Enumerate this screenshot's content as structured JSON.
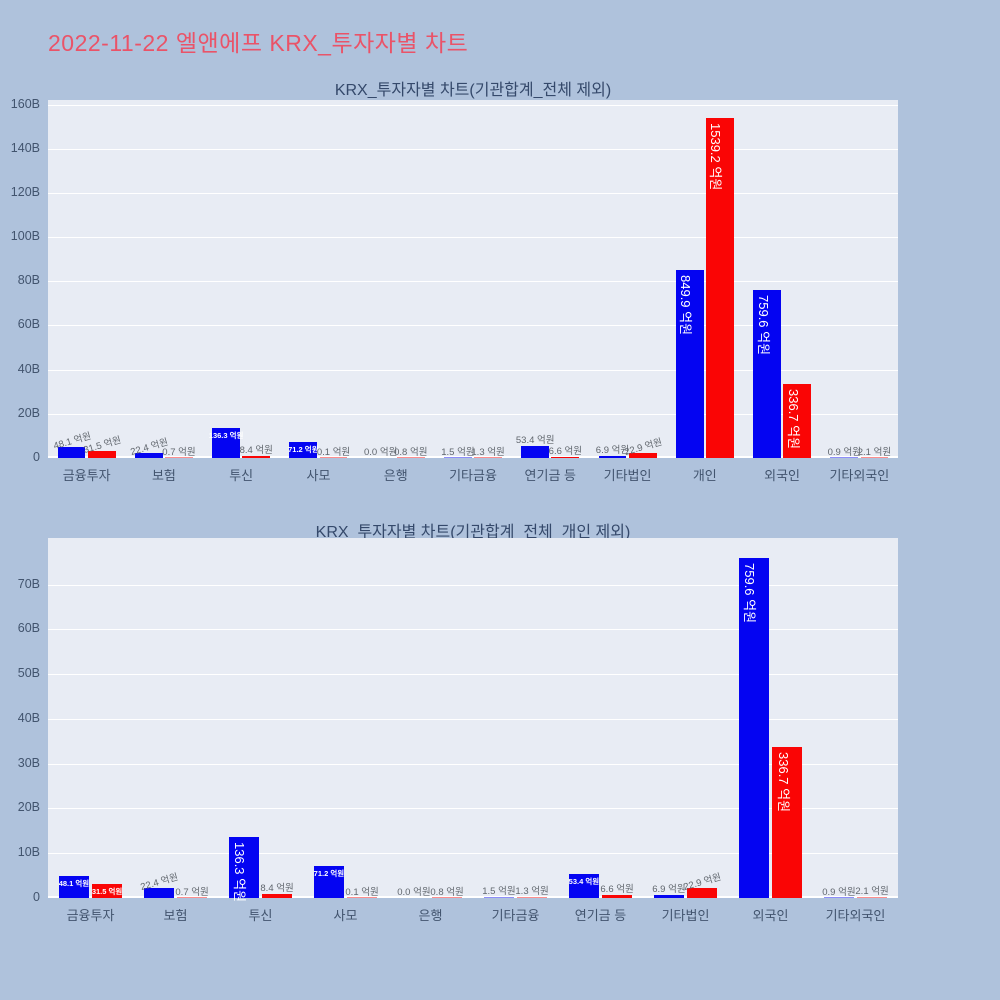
{
  "page": {
    "title": "2022-11-22 엘앤에프 KRX_투자자별 차트"
  },
  "colors": {
    "page_bg": "#afc2dc",
    "plot_bg": "#e8ecf4",
    "grid": "#ffffff",
    "bar_blue": "#0404f2",
    "bar_red": "#fa0505",
    "page_title": "#ea5368",
    "chart_title": "#35496b",
    "axis_label": "#42546e",
    "outside_label": "#60666d",
    "inside_label": "#ffffff"
  },
  "unit_suffix": "억원",
  "chart_data": [
    {
      "type": "bar",
      "title": "KRX_투자자별 차트(기관합계_전체 제외)",
      "categories": [
        "금융투자",
        "보험",
        "투신",
        "사모",
        "은행",
        "기타금융",
        "연기금 등",
        "기타법인",
        "개인",
        "외국인",
        "기타외국인"
      ],
      "series": [
        {
          "name": "series-blue",
          "color": "#0404f2",
          "values_eokwon": [
            48.1,
            22.4,
            136.3,
            71.2,
            0.0,
            1.5,
            53.4,
            6.9,
            849.9,
            759.6,
            0.9
          ]
        },
        {
          "name": "series-red",
          "color": "#fa0505",
          "values_eokwon": [
            31.5,
            0.7,
            8.4,
            0.1,
            0.8,
            1.3,
            6.6,
            22.9,
            1539.2,
            336.7,
            2.1
          ]
        }
      ],
      "value_labels": [
        [
          "48.1 억원",
          "22.4 억원",
          "136.3 억원",
          "71.2 억원",
          "0.0 억원",
          "1.5 억원",
          "53.4 억원",
          "6.9 억원",
          "849.9 억원",
          "759.6 억원",
          "0.9 억원"
        ],
        [
          "31.5 억원",
          "0.7 억원",
          "8.4 억원",
          "0.1 억원",
          "0.8 억원",
          "1.3 억원",
          "6.6 억원",
          "22.9 억원",
          "1539.2 억원",
          "336.7 억원",
          "2.1 억원"
        ]
      ],
      "ylim_B": [
        0,
        162.1
      ],
      "yticks": [
        {
          "v": 0,
          "label": "0"
        },
        {
          "v": 20,
          "label": "20B"
        },
        {
          "v": 40,
          "label": "40B"
        },
        {
          "v": 60,
          "label": "60B"
        },
        {
          "v": 80,
          "label": "80B"
        },
        {
          "v": 100,
          "label": "100B"
        },
        {
          "v": 120,
          "label": "120B"
        },
        {
          "v": 140,
          "label": "140B"
        },
        {
          "v": 160,
          "label": "160B"
        }
      ],
      "grid": true,
      "legend": "none",
      "tilted_value_labels": [
        [
          0,
          0
        ],
        [
          0,
          1
        ],
        [
          1,
          0
        ],
        [
          7,
          1
        ]
      ]
    },
    {
      "type": "bar",
      "title": "KRX_투자자별 차트(기관합계_전체_개인 제외)",
      "categories": [
        "금융투자",
        "보험",
        "투신",
        "사모",
        "은행",
        "기타금융",
        "연기금 등",
        "기타법인",
        "외국인",
        "기타외국인"
      ],
      "series": [
        {
          "name": "series-blue",
          "color": "#0404f2",
          "values_eokwon": [
            48.1,
            22.4,
            136.3,
            71.2,
            0.0,
            1.5,
            53.4,
            6.9,
            759.6,
            0.9
          ]
        },
        {
          "name": "series-red",
          "color": "#fa0505",
          "values_eokwon": [
            31.5,
            0.7,
            8.4,
            0.1,
            0.8,
            1.3,
            6.6,
            22.9,
            336.7,
            2.1
          ]
        }
      ],
      "value_labels": [
        [
          "48.1 억원",
          "22.4 억원",
          "136.3 억원",
          "71.2 억원",
          "0.0 억원",
          "1.5 억원",
          "53.4 억원",
          "6.9 억원",
          "759.6 억원",
          "0.9 억원"
        ],
        [
          "31.5 억원",
          "0.7 억원",
          "8.4 억원",
          "0.1 억원",
          "0.8 억원",
          "1.3 억원",
          "6.6 억원",
          "22.9 억원",
          "336.7 억원",
          "2.1 억원"
        ]
      ],
      "ylim_B": [
        0,
        80.4
      ],
      "yticks": [
        {
          "v": 0,
          "label": "0"
        },
        {
          "v": 10,
          "label": "10B"
        },
        {
          "v": 20,
          "label": "20B"
        },
        {
          "v": 30,
          "label": "30B"
        },
        {
          "v": 40,
          "label": "40B"
        },
        {
          "v": 50,
          "label": "50B"
        },
        {
          "v": 60,
          "label": "60B"
        },
        {
          "v": 70,
          "label": "70B"
        }
      ],
      "grid": true,
      "legend": "none",
      "tilted_value_labels": [
        [
          1,
          0
        ],
        [
          7,
          1
        ]
      ]
    }
  ]
}
